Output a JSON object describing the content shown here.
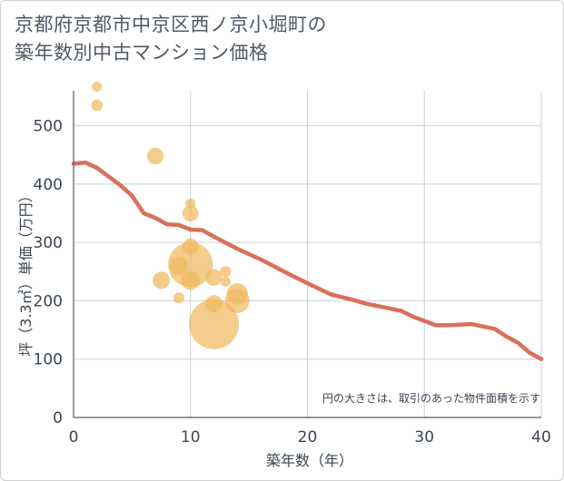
{
  "chart_data": {
    "type": "scatter",
    "title": [
      "京都府京都市中京区西ノ京小堀町の",
      "築年数別中古マンション価格"
    ],
    "xlabel": "築年数（年）",
    "ylabel": "坪（3.3㎡）単価（万円）",
    "xlim": [
      0,
      40
    ],
    "ylim": [
      0,
      560
    ],
    "xticks": [
      0,
      10,
      20,
      30,
      40
    ],
    "yticks": [
      0,
      100,
      200,
      300,
      400,
      500
    ],
    "grid": true,
    "note": "円の大きさは、取引のあった物件面積を示す",
    "bubble_color": "#f0b860",
    "line_color": "#d9705a",
    "bubbles": [
      {
        "x": 2,
        "y": 567,
        "size": 1
      },
      {
        "x": 2,
        "y": 535,
        "size": 1.3
      },
      {
        "x": 7,
        "y": 448,
        "size": 2.8
      },
      {
        "x": 10,
        "y": 367,
        "size": 1
      },
      {
        "x": 10,
        "y": 350,
        "size": 2.6
      },
      {
        "x": 10,
        "y": 293,
        "size": 2.6
      },
      {
        "x": 10,
        "y": 262,
        "size": 20
      },
      {
        "x": 9,
        "y": 260,
        "size": 3.5
      },
      {
        "x": 7.5,
        "y": 235,
        "size": 3
      },
      {
        "x": 10,
        "y": 235,
        "size": 3.6
      },
      {
        "x": 9,
        "y": 205,
        "size": 1.2
      },
      {
        "x": 12,
        "y": 240,
        "size": 2.8
      },
      {
        "x": 13,
        "y": 250,
        "size": 1.2
      },
      {
        "x": 13,
        "y": 233,
        "size": 1
      },
      {
        "x": 14,
        "y": 212,
        "size": 4.5
      },
      {
        "x": 14,
        "y": 200,
        "size": 6
      },
      {
        "x": 12,
        "y": 195,
        "size": 3
      },
      {
        "x": 12,
        "y": 160,
        "size": 25
      }
    ],
    "trend": {
      "x": [
        0,
        1,
        2,
        3,
        4,
        5,
        6,
        7,
        8,
        9,
        10,
        11,
        12,
        14,
        16,
        18,
        20,
        22,
        24,
        25,
        28,
        29,
        31,
        32,
        34,
        36,
        37,
        38,
        39,
        40
      ],
      "y": [
        435,
        437,
        428,
        413,
        398,
        380,
        350,
        342,
        331,
        330,
        322,
        321,
        310,
        289,
        271,
        250,
        230,
        211,
        201,
        195,
        183,
        173,
        158,
        158,
        160,
        152,
        139,
        128,
        111,
        100
      ]
    }
  }
}
